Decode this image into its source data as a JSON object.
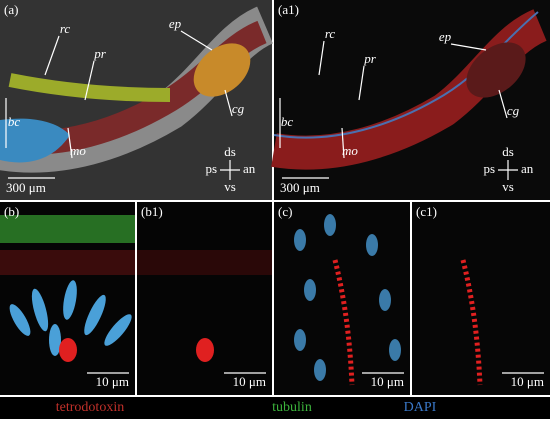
{
  "panels": [
    {
      "label": "(a)",
      "annotations": [
        "rc",
        "pr",
        "ep",
        "cg",
        "bc",
        "mo"
      ],
      "compass": {
        "up": "ds",
        "down": "vs",
        "left": "ps",
        "right": "an"
      },
      "scale_bar": "300 μm"
    },
    {
      "label": "(a1)",
      "annotations": [
        "rc",
        "pr",
        "ep",
        "cg",
        "bc",
        "mo"
      ],
      "compass": {
        "up": "ds",
        "down": "vs",
        "left": "ps",
        "right": "an"
      },
      "scale_bar": "300 μm"
    },
    {
      "label": "(b)",
      "scale_bar": "10 μm"
    },
    {
      "label": "(b1)",
      "scale_bar": "10 μm"
    },
    {
      "label": "(c)",
      "scale_bar": "10 μm"
    },
    {
      "label": "(c1)",
      "scale_bar": "10 μm"
    }
  ],
  "legend": {
    "items": [
      {
        "text": "tetrodotoxin",
        "color": "#c0302a"
      },
      {
        "text": "tubulin",
        "color": "#3cb43c"
      },
      {
        "text": "DAPI",
        "color": "#3a78c8"
      }
    ]
  }
}
